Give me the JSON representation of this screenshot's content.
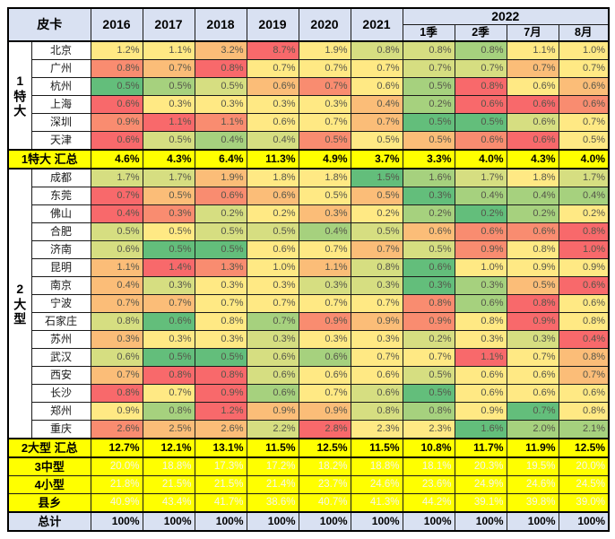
{
  "header": {
    "title": "皮卡",
    "years": [
      "2016",
      "2017",
      "2018",
      "2019",
      "2020",
      "2021"
    ],
    "year_2022": "2022",
    "sub_2022": [
      "1季",
      "2季",
      "7月",
      "8月"
    ]
  },
  "palette": {
    "R": "#F8696B",
    "O": "#F98C70",
    "LO": "#FBBD78",
    "Y": "#FFE984",
    "YG": "#D6DE81",
    "LG": "#A6D17E",
    "G": "#63BE7B",
    "header_bg": "#D9E1F2",
    "summary_bg": "#FFFF00",
    "total_bg": "#D9E1F2",
    "value_text": "#55554a",
    "aggregate_value_text": "#f6f6ec"
  },
  "chart_data": {
    "type": "heatmap",
    "unit": "%",
    "columns": [
      "2016",
      "2017",
      "2018",
      "2019",
      "2020",
      "2021",
      "2022-1季",
      "2022-2季",
      "2022-7月",
      "2022-8月"
    ],
    "groups": [
      {
        "label": "1特大",
        "rows": [
          {
            "city": "北京",
            "values": [
              "1.2%",
              "1.1%",
              "3.2%",
              "8.7%",
              "1.9%",
              "0.8%",
              "0.8%",
              "0.8%",
              "1.1%",
              "1.0%"
            ],
            "colors": [
              "Y",
              "Y",
              "LO",
              "R",
              "Y",
              "YG",
              "YG",
              "LG",
              "Y",
              "Y"
            ]
          },
          {
            "city": "广州",
            "values": [
              "0.8%",
              "0.7%",
              "0.8%",
              "0.7%",
              "0.7%",
              "0.7%",
              "0.7%",
              "0.7%",
              "0.7%",
              "0.7%"
            ],
            "colors": [
              "O",
              "LO",
              "R",
              "Y",
              "Y",
              "Y",
              "YG",
              "YG",
              "LO",
              "Y"
            ]
          },
          {
            "city": "杭州",
            "values": [
              "0.5%",
              "0.5%",
              "0.5%",
              "0.6%",
              "0.7%",
              "0.6%",
              "0.5%",
              "0.8%",
              "0.6%",
              "0.6%"
            ],
            "colors": [
              "G",
              "LG",
              "YG",
              "LO",
              "O",
              "Y",
              "LG",
              "R",
              "Y",
              "LO"
            ]
          },
          {
            "city": "上海",
            "values": [
              "0.6%",
              "0.3%",
              "0.3%",
              "0.3%",
              "0.3%",
              "0.4%",
              "0.2%",
              "0.6%",
              "0.6%",
              "0.6%"
            ],
            "colors": [
              "R",
              "Y",
              "Y",
              "Y",
              "Y",
              "LO",
              "LG",
              "R",
              "R",
              "O"
            ]
          },
          {
            "city": "深圳",
            "values": [
              "0.9%",
              "1.1%",
              "1.1%",
              "0.6%",
              "0.7%",
              "0.7%",
              "0.5%",
              "0.5%",
              "0.6%",
              "0.7%"
            ],
            "colors": [
              "O",
              "R",
              "O",
              "Y",
              "Y",
              "LO",
              "G",
              "G",
              "YG",
              "Y"
            ]
          },
          {
            "city": "天津",
            "values": [
              "0.6%",
              "0.5%",
              "0.4%",
              "0.4%",
              "0.5%",
              "0.5%",
              "0.5%",
              "0.6%",
              "0.6%",
              "0.5%"
            ],
            "colors": [
              "R",
              "YG",
              "LG",
              "YG",
              "O",
              "Y",
              "LO",
              "O",
              "R",
              "Y"
            ]
          }
        ],
        "summary": {
          "label": "1特大 汇总",
          "values": [
            "4.6%",
            "4.3%",
            "6.4%",
            "11.3%",
            "4.9%",
            "3.7%",
            "3.3%",
            "4.0%",
            "4.3%",
            "4.0%"
          ]
        }
      },
      {
        "label": "2大型",
        "rows": [
          {
            "city": "成都",
            "values": [
              "1.7%",
              "1.7%",
              "1.9%",
              "1.8%",
              "1.8%",
              "1.5%",
              "1.6%",
              "1.7%",
              "1.8%",
              "1.7%"
            ],
            "colors": [
              "YG",
              "YG",
              "LO",
              "Y",
              "Y",
              "G",
              "LG",
              "YG",
              "Y",
              "YG"
            ]
          },
          {
            "city": "东莞",
            "values": [
              "0.7%",
              "0.5%",
              "0.6%",
              "0.6%",
              "0.5%",
              "0.5%",
              "0.3%",
              "0.4%",
              "0.4%",
              "0.4%"
            ],
            "colors": [
              "R",
              "LO",
              "O",
              "LO",
              "Y",
              "LO",
              "G",
              "LG",
              "LG",
              "LG"
            ]
          },
          {
            "city": "佛山",
            "values": [
              "0.4%",
              "0.3%",
              "0.2%",
              "0.2%",
              "0.3%",
              "0.2%",
              "0.2%",
              "0.2%",
              "0.2%",
              "0.2%"
            ],
            "colors": [
              "R",
              "O",
              "YG",
              "Y",
              "LO",
              "Y",
              "LG",
              "G",
              "LG",
              "Y"
            ]
          },
          {
            "city": "合肥",
            "values": [
              "0.5%",
              "0.5%",
              "0.5%",
              "0.5%",
              "0.4%",
              "0.5%",
              "0.6%",
              "0.6%",
              "0.6%",
              "0.8%"
            ],
            "colors": [
              "YG",
              "Y",
              "YG",
              "YG",
              "LG",
              "YG",
              "LO",
              "O",
              "O",
              "R"
            ]
          },
          {
            "city": "济南",
            "values": [
              "0.6%",
              "0.5%",
              "0.5%",
              "0.6%",
              "0.7%",
              "0.7%",
              "0.5%",
              "0.9%",
              "0.8%",
              "1.0%"
            ],
            "colors": [
              "YG",
              "G",
              "G",
              "Y",
              "Y",
              "LO",
              "YG",
              "O",
              "Y",
              "R"
            ]
          },
          {
            "city": "昆明",
            "values": [
              "1.1%",
              "1.4%",
              "1.3%",
              "1.0%",
              "1.1%",
              "0.8%",
              "0.6%",
              "1.0%",
              "0.9%",
              "0.9%"
            ],
            "colors": [
              "LO",
              "R",
              "O",
              "Y",
              "LO",
              "YG",
              "G",
              "Y",
              "Y",
              "Y"
            ]
          },
          {
            "city": "南京",
            "values": [
              "0.4%",
              "0.3%",
              "0.3%",
              "0.3%",
              "0.3%",
              "0.3%",
              "0.3%",
              "0.3%",
              "0.5%",
              "0.6%"
            ],
            "colors": [
              "LO",
              "YG",
              "Y",
              "Y",
              "YG",
              "YG",
              "G",
              "LG",
              "LO",
              "R"
            ]
          },
          {
            "city": "宁波",
            "values": [
              "0.7%",
              "0.7%",
              "0.7%",
              "0.7%",
              "0.7%",
              "0.7%",
              "0.8%",
              "0.6%",
              "0.8%",
              "0.6%"
            ],
            "colors": [
              "LO",
              "LO",
              "Y",
              "Y",
              "Y",
              "Y",
              "O",
              "LG",
              "R",
              "Y"
            ]
          },
          {
            "city": "石家庄",
            "values": [
              "0.8%",
              "0.6%",
              "0.8%",
              "0.7%",
              "0.9%",
              "0.9%",
              "0.9%",
              "0.8%",
              "0.9%",
              "0.8%"
            ],
            "colors": [
              "YG",
              "G",
              "Y",
              "LG",
              "O",
              "LO",
              "O",
              "Y",
              "R",
              "Y"
            ]
          },
          {
            "city": "苏州",
            "values": [
              "0.3%",
              "0.3%",
              "0.3%",
              "0.3%",
              "0.3%",
              "0.3%",
              "0.2%",
              "0.3%",
              "0.3%",
              "0.4%"
            ],
            "colors": [
              "LO",
              "Y",
              "Y",
              "YG",
              "Y",
              "Y",
              "YG",
              "Y",
              "YG",
              "R"
            ]
          },
          {
            "city": "武汉",
            "values": [
              "0.6%",
              "0.5%",
              "0.5%",
              "0.6%",
              "0.6%",
              "0.7%",
              "0.7%",
              "1.1%",
              "0.7%",
              "0.8%"
            ],
            "colors": [
              "YG",
              "G",
              "G",
              "YG",
              "LG",
              "Y",
              "Y",
              "R",
              "Y",
              "LO"
            ]
          },
          {
            "city": "西安",
            "values": [
              "0.7%",
              "0.8%",
              "0.8%",
              "0.6%",
              "0.6%",
              "0.6%",
              "0.5%",
              "0.6%",
              "0.6%",
              "0.7%"
            ],
            "colors": [
              "LO",
              "R",
              "R",
              "YG",
              "Y",
              "Y",
              "YG",
              "Y",
              "Y",
              "LO"
            ]
          },
          {
            "city": "长沙",
            "values": [
              "0.8%",
              "0.7%",
              "0.9%",
              "0.6%",
              "0.7%",
              "0.6%",
              "0.5%",
              "0.6%",
              "0.6%",
              "0.6%"
            ],
            "colors": [
              "R",
              "Y",
              "R",
              "LG",
              "Y",
              "YG",
              "G",
              "Y",
              "Y",
              "Y"
            ]
          },
          {
            "city": "郑州",
            "values": [
              "0.9%",
              "0.8%",
              "1.2%",
              "0.9%",
              "0.9%",
              "0.8%",
              "0.8%",
              "0.9%",
              "0.7%",
              "0.8%"
            ],
            "colors": [
              "Y",
              "LG",
              "R",
              "LO",
              "LO",
              "YG",
              "LG",
              "Y",
              "G",
              "Y"
            ]
          },
          {
            "city": "重庆",
            "values": [
              "2.6%",
              "2.5%",
              "2.6%",
              "2.2%",
              "2.8%",
              "2.3%",
              "2.3%",
              "1.6%",
              "2.0%",
              "2.1%"
            ],
            "colors": [
              "O",
              "LO",
              "LO",
              "YG",
              "R",
              "Y",
              "Y",
              "G",
              "LG",
              "LG"
            ]
          }
        ],
        "summary": {
          "label": "2大型 汇总",
          "values": [
            "12.7%",
            "12.1%",
            "13.1%",
            "11.5%",
            "12.5%",
            "11.5%",
            "10.8%",
            "11.7%",
            "11.9%",
            "12.5%"
          ]
        }
      }
    ],
    "aggregates": [
      {
        "label": "3中型",
        "values": [
          "20.0%",
          "18.8%",
          "17.3%",
          "17.2%",
          "18.2%",
          "18.8%",
          "18.1%",
          "20.3%",
          "19.5%",
          "20.0%"
        ]
      },
      {
        "label": "4小型",
        "values": [
          "21.8%",
          "21.5%",
          "21.5%",
          "21.4%",
          "23.7%",
          "24.6%",
          "23.6%",
          "24.9%",
          "24.6%",
          "24.5%"
        ]
      },
      {
        "label": "县乡",
        "values": [
          "40.9%",
          "43.4%",
          "41.7%",
          "38.6%",
          "40.7%",
          "41.3%",
          "44.2%",
          "39.1%",
          "39.8%",
          "39.0%"
        ]
      }
    ],
    "total": {
      "label": "总计",
      "values": [
        "100%",
        "100%",
        "100%",
        "100%",
        "100%",
        "100%",
        "100%",
        "100%",
        "100%",
        "100%"
      ]
    }
  }
}
